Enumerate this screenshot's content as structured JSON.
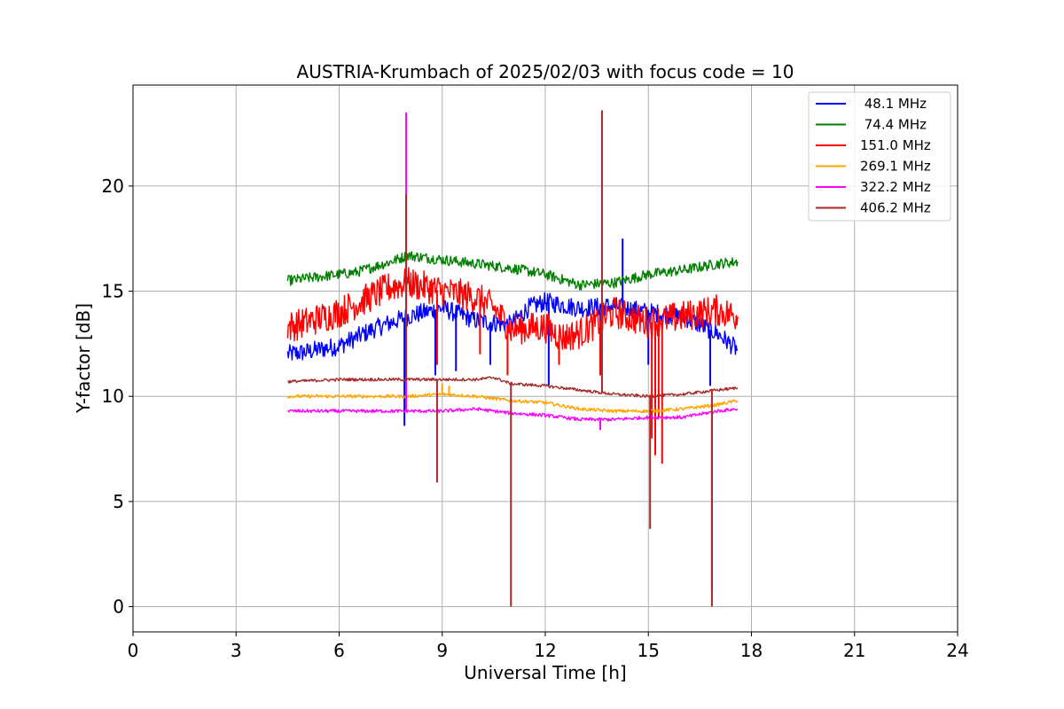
{
  "chart_data": {
    "type": "line",
    "title": "AUSTRIA-Krumbach of 2025/02/03 with focus code = 10",
    "xlabel": "Universal Time [h]",
    "ylabel": "Y-factor [dB]",
    "xlim": [
      0,
      24
    ],
    "ylim": [
      -1.2,
      24.8
    ],
    "xticks": [
      0,
      3,
      6,
      9,
      12,
      15,
      18,
      21,
      24
    ],
    "yticks": [
      0,
      5,
      10,
      15,
      20
    ],
    "grid": true,
    "legend_position": "top-right",
    "series": [
      {
        "name": " 48.1 MHz",
        "color": "#0000ff",
        "x": [
          4.5,
          5.0,
          6.0,
          7.0,
          8.0,
          9.0,
          10.0,
          11.0,
          11.5,
          12.0,
          13.0,
          14.0,
          15.0,
          16.0,
          17.0,
          17.6
        ],
        "y": [
          12.0,
          12.1,
          12.4,
          13.2,
          13.8,
          14.2,
          13.6,
          13.4,
          14.2,
          14.5,
          14.2,
          14.3,
          14.0,
          13.8,
          13.0,
          12.2
        ],
        "spikes": [
          [
            7.9,
            8.6
          ],
          [
            8.8,
            11.0
          ],
          [
            9.4,
            11.2
          ],
          [
            10.4,
            11.5
          ],
          [
            12.1,
            10.5
          ],
          [
            13.6,
            11.0
          ],
          [
            14.25,
            17.5
          ],
          [
            15.0,
            11.5
          ],
          [
            16.8,
            10.5
          ]
        ]
      },
      {
        "name": " 74.4 MHz",
        "color": "#008000",
        "x": [
          4.5,
          5.5,
          6.5,
          7.5,
          8.0,
          9.0,
          10.0,
          11.0,
          12.0,
          13.0,
          14.0,
          15.0,
          15.5,
          16.0,
          17.0,
          17.6
        ],
        "y": [
          15.5,
          15.7,
          15.9,
          16.4,
          16.7,
          16.5,
          16.3,
          16.1,
          15.8,
          15.3,
          15.4,
          15.8,
          15.9,
          16.0,
          16.3,
          16.4
        ],
        "spikes": []
      },
      {
        "name": "151.0 MHz",
        "color": "#ff0000",
        "x": [
          4.5,
          5.0,
          6.0,
          7.0,
          7.5,
          8.0,
          9.0,
          10.0,
          10.5,
          11.0,
          12.0,
          12.5,
          13.0,
          14.0,
          15.0,
          16.0,
          17.0,
          17.6
        ],
        "y": [
          13.3,
          13.5,
          14.0,
          14.8,
          15.2,
          15.4,
          15.0,
          14.7,
          14.2,
          13.2,
          13.3,
          12.8,
          13.0,
          14.0,
          13.5,
          13.8,
          14.1,
          13.8
        ],
        "spikes": [
          [
            8.85,
            11.5
          ],
          [
            10.1,
            12.0
          ],
          [
            10.9,
            11.0
          ],
          [
            12.4,
            11.5
          ],
          [
            13.6,
            11.0
          ],
          [
            15.1,
            8.0
          ],
          [
            15.2,
            7.2
          ],
          [
            15.3,
            9.0
          ],
          [
            15.4,
            6.8
          ]
        ]
      },
      {
        "name": "269.1 MHz",
        "color": "#ffa500",
        "x": [
          4.5,
          6.0,
          8.0,
          9.0,
          10.0,
          11.0,
          12.0,
          13.0,
          14.0,
          15.0,
          16.0,
          17.0,
          17.6
        ],
        "y": [
          10.0,
          10.0,
          10.0,
          10.1,
          10.0,
          9.8,
          9.7,
          9.4,
          9.3,
          9.3,
          9.4,
          9.6,
          9.8
        ],
        "spikes": [
          [
            9.0,
            10.6
          ],
          [
            9.2,
            10.5
          ]
        ]
      },
      {
        "name": "322.2 MHz",
        "color": "#ff00ff",
        "x": [
          4.5,
          6.0,
          8.0,
          9.0,
          10.0,
          11.0,
          12.0,
          13.0,
          14.0,
          15.0,
          16.0,
          17.0,
          17.6
        ],
        "y": [
          9.3,
          9.3,
          9.3,
          9.3,
          9.4,
          9.2,
          9.1,
          8.9,
          8.9,
          9.0,
          9.0,
          9.3,
          9.4
        ],
        "spikes": [
          [
            7.95,
            23.5
          ],
          [
            13.6,
            8.4
          ],
          [
            16.85,
            0.7
          ]
        ]
      },
      {
        "name": "406.2 MHz",
        "color": "#a52a2a",
        "x": [
          4.5,
          6.0,
          8.0,
          9.0,
          10.0,
          10.5,
          11.0,
          12.0,
          13.0,
          14.0,
          15.0,
          16.0,
          17.0,
          17.6
        ],
        "y": [
          10.7,
          10.8,
          10.8,
          10.8,
          10.8,
          10.9,
          10.6,
          10.5,
          10.3,
          10.1,
          10.0,
          10.1,
          10.3,
          10.4
        ],
        "spikes": [
          [
            7.95,
            19.6
          ],
          [
            8.85,
            5.9
          ],
          [
            11.0,
            0.0
          ],
          [
            13.65,
            23.6
          ],
          [
            15.05,
            3.7
          ],
          [
            16.85,
            0.0
          ]
        ]
      }
    ]
  }
}
